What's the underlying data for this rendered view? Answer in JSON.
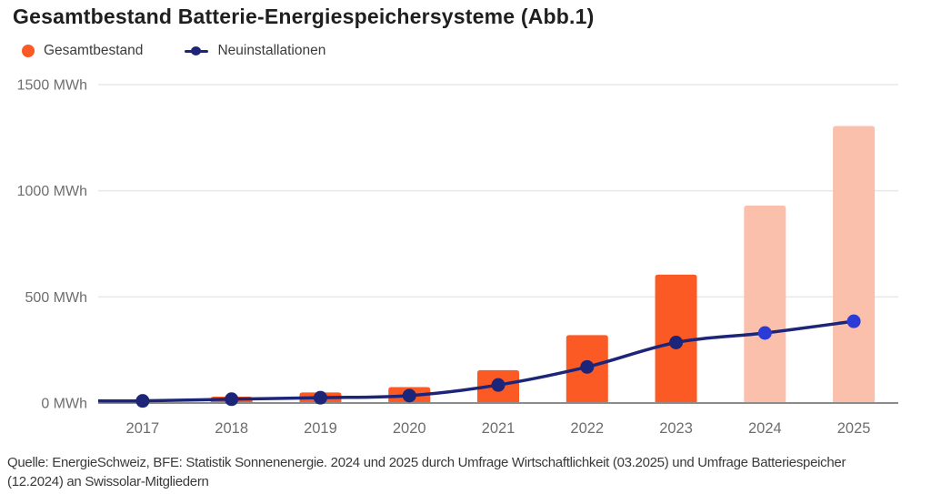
{
  "title": "Gesamtbestand Batterie-Energiespeichersysteme (Abb.1)",
  "legend": [
    {
      "label": "Gesamtbestand",
      "marker": "circle",
      "color": "#FB5A25"
    },
    {
      "label": "Neuinstallationen",
      "marker": "line-dot",
      "color": "#1C2577"
    }
  ],
  "footer": {
    "line1": "Quelle: EnergieSchweiz, BFE: Statistik Sonnenenergie. 2024 und 2025 durch Umfrage Wirtschaftlichkeit (03.2025) und Umfrage Batteriespeicher",
    "line2": "(12.2024) an Swissolar-Mitgliedern"
  },
  "colors": {
    "bar": "#FB5A25",
    "bar_light": "#FAC0AB",
    "line": "#1C2577",
    "dot": "#1C2577",
    "dot_bright": "#2B3BD5",
    "grid": "#E8E8E8",
    "axis_line": "#8C8C8C",
    "axis_text": "#6E6E6E"
  },
  "chart_data": {
    "type": "bar",
    "subtype": "combo-bar-line",
    "title": "Gesamtbestand Batterie-Energiespeichersysteme (Abb.1)",
    "categories": [
      "2017",
      "2018",
      "2019",
      "2020",
      "2021",
      "2022",
      "2023",
      "2024",
      "2025"
    ],
    "unit": "MWh",
    "xlabel": "",
    "ylabel": "MWh",
    "ylim": [
      0,
      1500
    ],
    "y_ticks": [
      0,
      500,
      1000,
      1500
    ],
    "y_tick_labels": [
      "0 MWh",
      "500 MWh",
      "1000 MWh",
      "1500 MWh"
    ],
    "grid": true,
    "legend_position": "top-left",
    "series": [
      {
        "name": "Gesamtbestand",
        "type": "bar",
        "values": [
          15,
          30,
          50,
          75,
          155,
          320,
          605,
          930,
          1305
        ],
        "bar_colors": [
          "#FB5A25",
          "#FB5A25",
          "#FB5A25",
          "#FB5A25",
          "#FB5A25",
          "#FB5A25",
          "#FB5A25",
          "#FAC0AB",
          "#FAC0AB"
        ]
      },
      {
        "name": "Neuinstallationen",
        "type": "line",
        "values": [
          10,
          18,
          25,
          35,
          85,
          170,
          285,
          330,
          385
        ],
        "line_color": "#1C2577",
        "dot_colors": [
          "#1C2577",
          "#1C2577",
          "#1C2577",
          "#1C2577",
          "#1C2577",
          "#1C2577",
          "#1C2577",
          "#2B3BD5",
          "#2B3BD5"
        ]
      }
    ]
  }
}
